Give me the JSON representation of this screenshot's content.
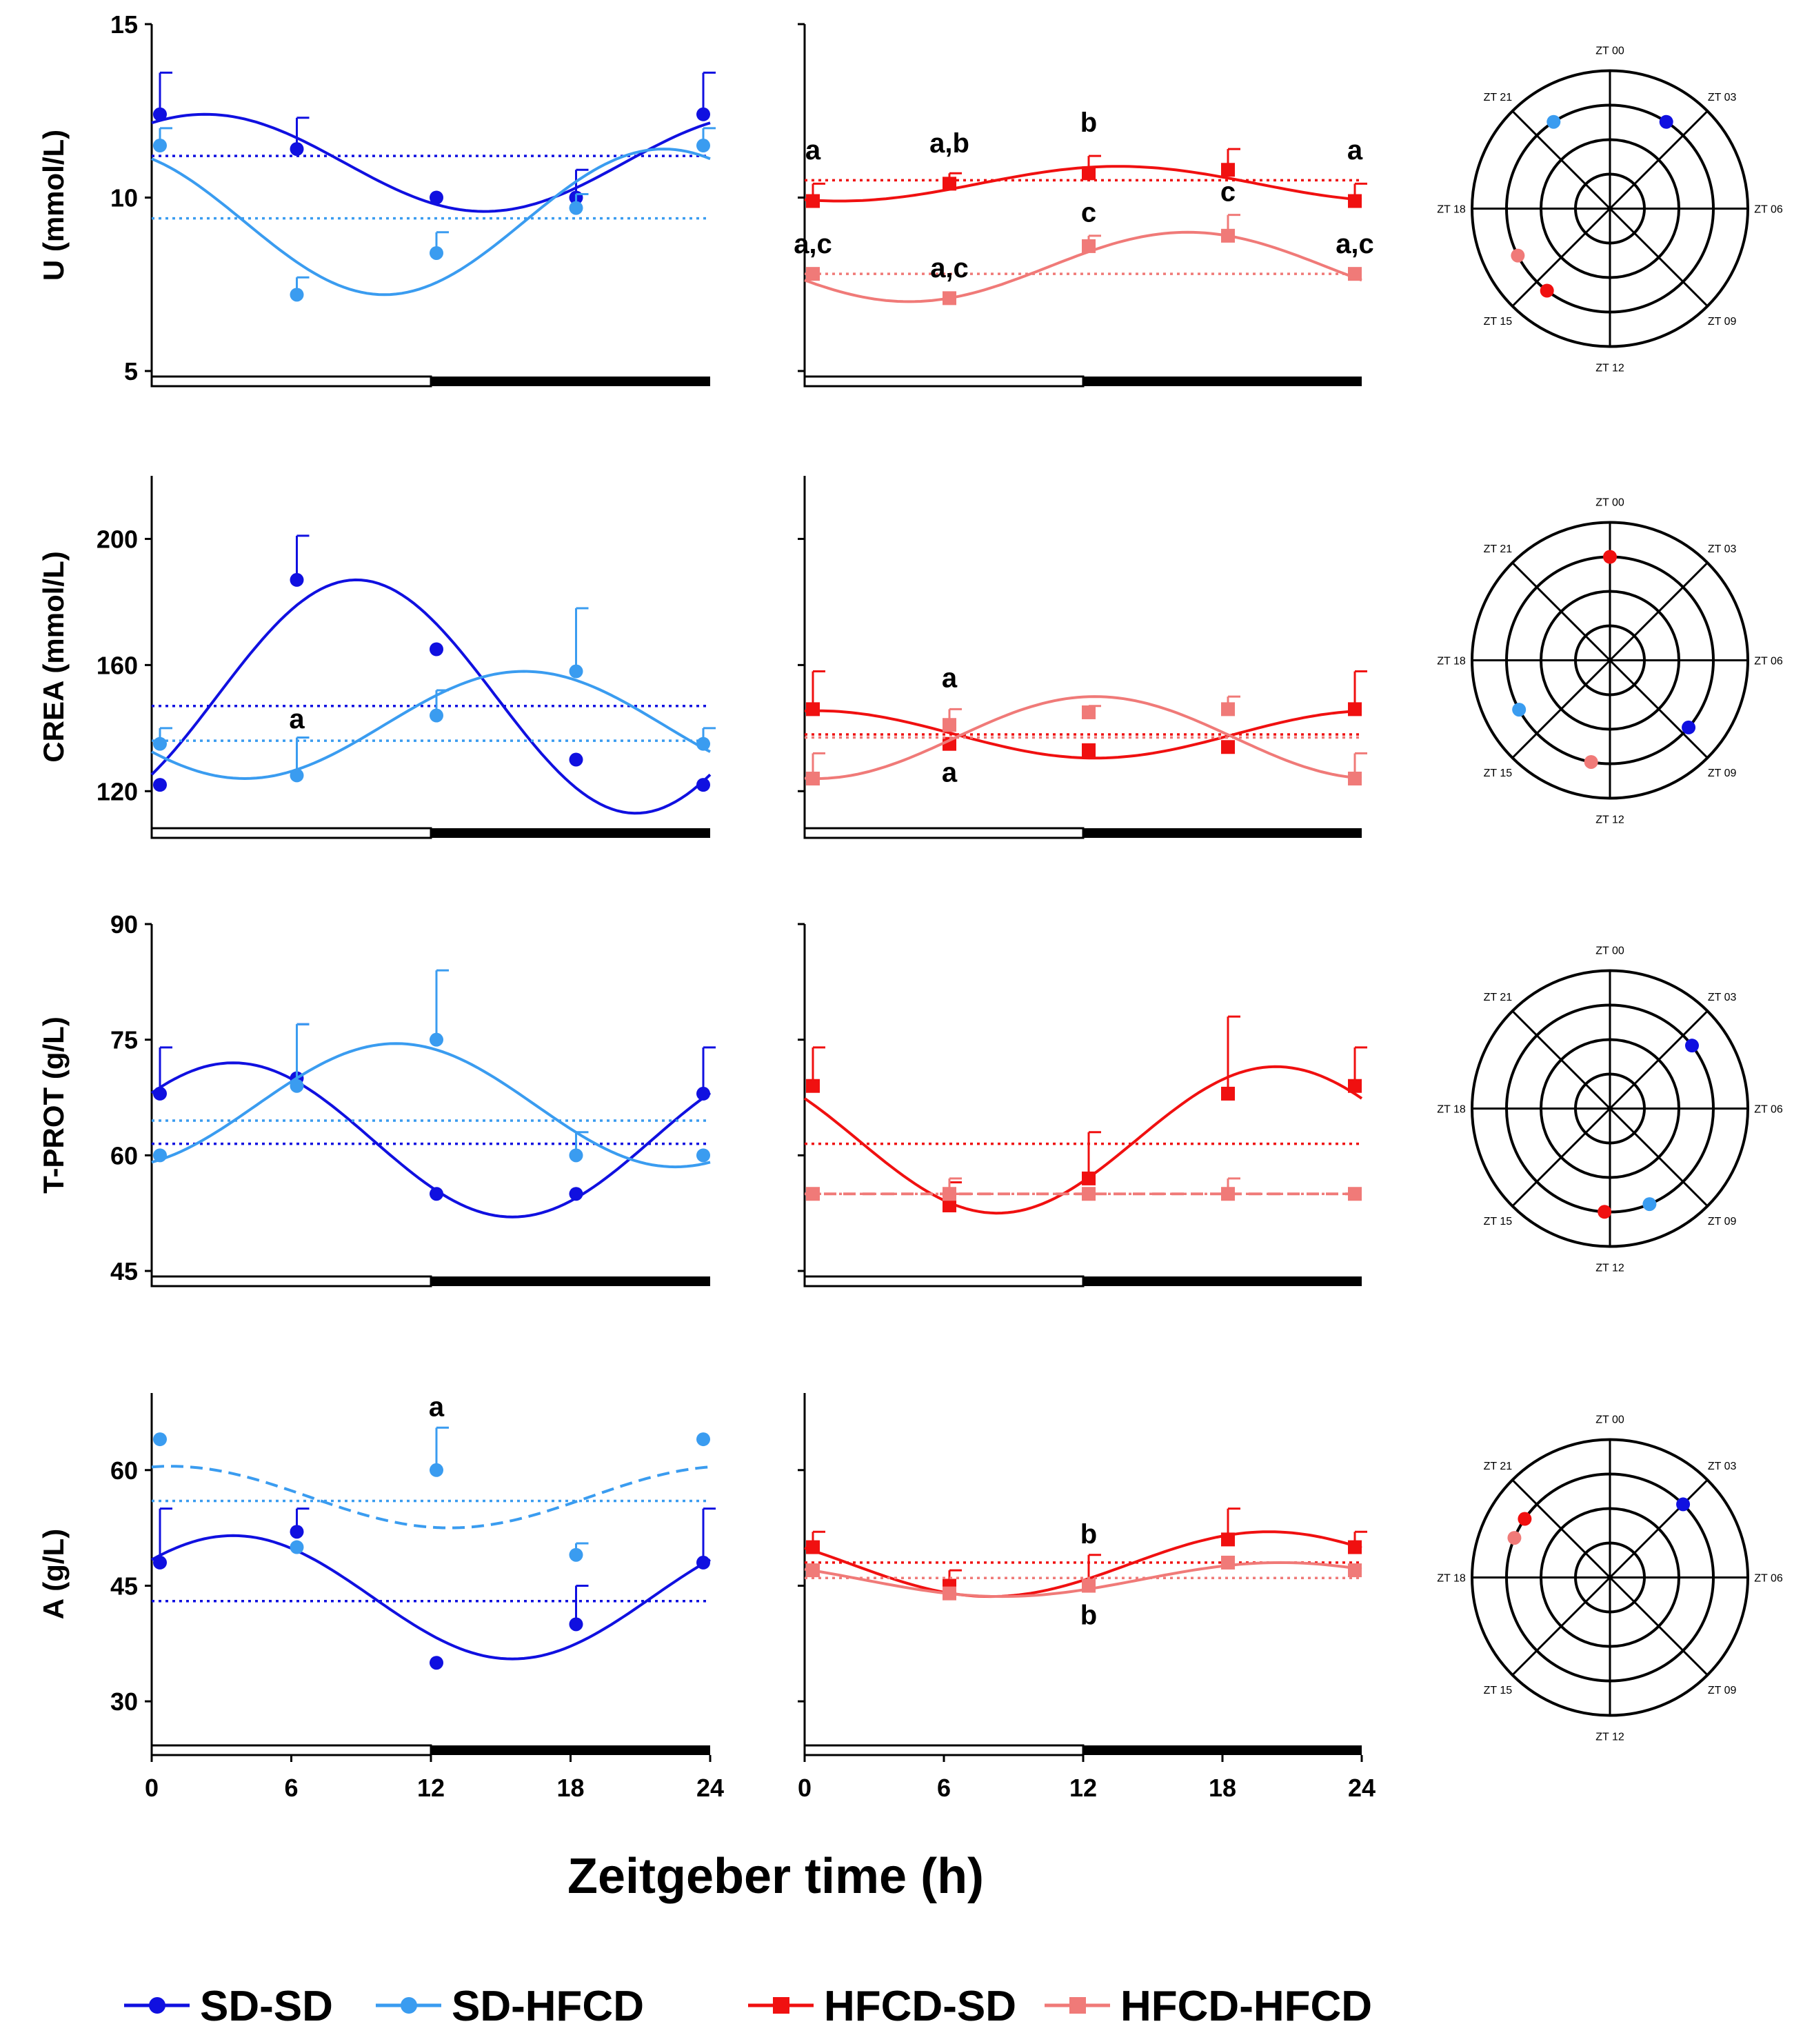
{
  "colors": {
    "sd_sd": "#1010e0",
    "sd_hfcd": "#3a9cf0",
    "hfcd_sd": "#f01010",
    "hfcd_hfcd": "#f07a78",
    "axis": "#000000"
  },
  "x_axis_title": "Zeitgeber time (h)",
  "legend": [
    {
      "key": "sd_sd",
      "label": "SD-SD",
      "marker": "circle"
    },
    {
      "key": "sd_hfcd",
      "label": "SD-HFCD",
      "marker": "circle"
    },
    {
      "key": "hfcd_sd",
      "label": "HFCD-SD",
      "marker": "square"
    },
    {
      "key": "hfcd_hfcd",
      "label": "HFCD-HFCD",
      "marker": "square"
    }
  ],
  "polar_labels": [
    "ZT 00",
    "ZT 03",
    "ZT 06",
    "ZT 09",
    "ZT 12",
    "ZT 15",
    "ZT 18",
    "ZT 21"
  ],
  "chart_data": [
    {
      "id": "U",
      "type": "line",
      "ylabel": "U (mmol/L)",
      "ylim": [
        5,
        15
      ],
      "yticks": [
        "15",
        "10",
        "5"
      ],
      "xlim": [
        0,
        24
      ],
      "xticks": [
        "0",
        "6",
        "12",
        "18",
        "24"
      ],
      "left": {
        "series": [
          {
            "name": "SD-SD",
            "key": "sd_sd",
            "x": [
              0,
              6,
              12,
              18,
              24
            ],
            "y": [
              12.4,
              11.4,
              10.0,
              10.0,
              12.4
            ],
            "err": [
              1.2,
              0.9,
              0,
              0.8,
              1.2
            ],
            "mesor": 11.2,
            "fit": {
              "mesor": 11.0,
              "amp": 1.4,
              "acro": 2.3
            }
          },
          {
            "name": "SD-HFCD",
            "key": "sd_hfcd",
            "x": [
              0,
              6,
              12,
              18,
              24
            ],
            "y": [
              11.5,
              7.2,
              8.4,
              9.7,
              11.5
            ],
            "err": [
              0.5,
              0.5,
              0.6,
              0.4,
              0.5
            ],
            "mesor": 9.4,
            "fit": {
              "mesor": 9.3,
              "amp": 2.1,
              "acro": 22.0
            }
          }
        ],
        "letters": []
      },
      "right": {
        "series": [
          {
            "name": "HFCD-SD",
            "key": "hfcd_sd",
            "x": [
              0,
              6,
              12,
              18,
              24
            ],
            "y": [
              9.9,
              10.4,
              10.7,
              10.8,
              9.9
            ],
            "err": [
              0.5,
              0.3,
              0.5,
              0.6,
              0.5
            ],
            "mesor": 10.5,
            "fit": {
              "mesor": 10.4,
              "amp": 0.5,
              "acro": 13.5
            }
          },
          {
            "name": "HFCD-HFCD",
            "key": "hfcd_hfcd",
            "x": [
              0,
              6,
              12,
              18,
              24
            ],
            "y": [
              7.8,
              7.1,
              8.6,
              8.9,
              7.8
            ],
            "err": [
              0,
              0,
              0.3,
              0.6,
              0
            ],
            "mesor": 7.8,
            "fit": {
              "mesor": 8.0,
              "amp": 1.0,
              "acro": 16.5
            }
          }
        ],
        "letters": [
          {
            "x": 0,
            "y": 11.1,
            "text": "a"
          },
          {
            "x": 6,
            "y": 11.3,
            "text": "a,b"
          },
          {
            "x": 12,
            "y": 11.9,
            "text": "b"
          },
          {
            "x": 24,
            "y": 11.1,
            "text": "a"
          },
          {
            "x": 0,
            "y": 8.4,
            "text": "a,c"
          },
          {
            "x": 6,
            "y": 7.7,
            "text": "a,c"
          },
          {
            "x": 12,
            "y": 9.3,
            "text": "c"
          },
          {
            "x": 18,
            "y": 9.9,
            "text": "c"
          },
          {
            "x": 24,
            "y": 8.4,
            "text": "a,c"
          }
        ]
      },
      "polar": [
        {
          "key": "sd_sd",
          "zt": 2.2,
          "r": 0.75
        },
        {
          "key": "sd_hfcd",
          "zt": 21.8,
          "r": 0.75
        },
        {
          "key": "hfcd_sd",
          "zt": 14.5,
          "r": 0.75
        },
        {
          "key": "hfcd_hfcd",
          "zt": 16.2,
          "r": 0.75
        }
      ]
    },
    {
      "id": "CREA",
      "type": "line",
      "ylabel": "CREA (mmol/L)",
      "ylim": [
        110,
        220
      ],
      "yticks": [
        "200",
        "160",
        "120"
      ],
      "xlim": [
        0,
        24
      ],
      "xticks": [
        "0",
        "6",
        "12",
        "18",
        "24"
      ],
      "left": {
        "series": [
          {
            "name": "SD-SD",
            "key": "sd_sd",
            "x": [
              0,
              6,
              12,
              18,
              24
            ],
            "y": [
              122,
              187,
              165,
              130,
              122
            ],
            "err": [
              0,
              14,
              0,
              0,
              0
            ],
            "mesor": 147,
            "fit": {
              "mesor": 150,
              "amp": 37,
              "acro": 8.8
            }
          },
          {
            "name": "SD-HFCD",
            "key": "sd_hfcd",
            "x": [
              0,
              6,
              12,
              18,
              24
            ],
            "y": [
              135,
              125,
              144,
              158,
              135
            ],
            "err": [
              5,
              12,
              8,
              20,
              5
            ],
            "mesor": 136,
            "fit": {
              "mesor": 141,
              "amp": 17,
              "acro": 16.0
            }
          }
        ],
        "letters": [
          {
            "x": 6,
            "y": 140,
            "text": "a"
          }
        ]
      },
      "right": {
        "series": [
          {
            "name": "HFCD-SD",
            "key": "hfcd_sd",
            "x": [
              0,
              6,
              12,
              18,
              24
            ],
            "y": [
              146,
              135,
              133,
              134,
              146
            ],
            "err": [
              12,
              0,
              0,
              0,
              12
            ],
            "mesor": 138,
            "fit": {
              "mesor": 138,
              "amp": 7.5,
              "acro": 0.5
            }
          },
          {
            "name": "HFCD-HFCD",
            "key": "hfcd_hfcd",
            "x": [
              0,
              6,
              12,
              18,
              24
            ],
            "y": [
              124,
              141,
              145,
              146,
              124
            ],
            "err": [
              8,
              5,
              2,
              4,
              8
            ],
            "mesor": 137,
            "fit": {
              "mesor": 137,
              "amp": 13,
              "acro": 12.5
            }
          }
        ],
        "letters": [
          {
            "x": 6,
            "y": 153,
            "text": "a"
          },
          {
            "x": 6,
            "y": 123,
            "text": "a"
          }
        ]
      },
      "polar": [
        {
          "key": "sd_sd",
          "zt": 8.7,
          "r": 0.75
        },
        {
          "key": "sd_hfcd",
          "zt": 16.1,
          "r": 0.75
        },
        {
          "key": "hfcd_sd",
          "zt": 0.0,
          "r": 0.75
        },
        {
          "key": "hfcd_hfcd",
          "zt": 12.7,
          "r": 0.75
        }
      ]
    },
    {
      "id": "T-PROT",
      "type": "line",
      "ylabel": "T-PROT (g/L)",
      "ylim": [
        45,
        90
      ],
      "yticks": [
        "90",
        "75",
        "60",
        "45"
      ],
      "xlim": [
        0,
        24
      ],
      "xticks": [
        "0",
        "6",
        "12",
        "18",
        "24"
      ],
      "left": {
        "series": [
          {
            "name": "SD-SD",
            "key": "sd_sd",
            "x": [
              0,
              6,
              12,
              18,
              24
            ],
            "y": [
              68,
              70,
              55,
              55,
              68
            ],
            "err": [
              6,
              7,
              0,
              0,
              6
            ],
            "mesor": 61.5,
            "fit": {
              "mesor": 62,
              "amp": 10,
              "acro": 3.5
            }
          },
          {
            "name": "SD-HFCD",
            "key": "sd_hfcd",
            "x": [
              0,
              6,
              12,
              18,
              24
            ],
            "y": [
              60,
              69,
              75,
              60,
              60
            ],
            "err": [
              0,
              8,
              9,
              3,
              0
            ],
            "mesor": 64.5,
            "fit": {
              "mesor": 66.5,
              "amp": 8,
              "acro": 10.5
            }
          }
        ],
        "letters": []
      },
      "right": {
        "series": [
          {
            "name": "HFCD-SD",
            "key": "hfcd_sd",
            "x": [
              0,
              6,
              12,
              18,
              24
            ],
            "y": [
              69,
              53.5,
              57,
              68,
              69
            ],
            "err": [
              5,
              3,
              6,
              10,
              5
            ],
            "mesor": 61.5,
            "fit": {
              "mesor": 62,
              "amp": 9.5,
              "acro": 20.3
            }
          },
          {
            "name": "HFCD-HFCD",
            "key": "hfcd_hfcd",
            "x": [
              0,
              6,
              12,
              18,
              24
            ],
            "y": [
              55,
              55,
              55,
              55,
              55
            ],
            "err": [
              0,
              2,
              0,
              2,
              0
            ],
            "mesor": 55,
            "fit": null,
            "dashed_fit": 55
          }
        ],
        "letters": []
      },
      "polar": [
        {
          "key": "sd_sd",
          "zt": 3.5,
          "r": 0.75
        },
        {
          "key": "sd_hfcd",
          "zt": 10.5,
          "r": 0.75
        },
        {
          "key": "hfcd_sd",
          "zt": 12.2,
          "r": 0.75
        }
      ]
    },
    {
      "id": "A",
      "type": "line",
      "ylabel": "A (g/L)",
      "ylim": [
        25,
        70
      ],
      "yticks": [
        "60",
        "45",
        "30"
      ],
      "xlim": [
        0,
        24
      ],
      "xticks": [
        "0",
        "6",
        "12",
        "18",
        "24"
      ],
      "left": {
        "series": [
          {
            "name": "SD-SD",
            "key": "sd_sd",
            "x": [
              0,
              6,
              12,
              18,
              24
            ],
            "y": [
              48,
              52,
              35,
              40,
              48
            ],
            "err": [
              7,
              3,
              0,
              5,
              7
            ],
            "mesor": 43,
            "fit": {
              "mesor": 43.5,
              "amp": 8,
              "acro": 3.5
            }
          },
          {
            "name": "SD-HFCD",
            "key": "sd_hfcd",
            "x": [
              0,
              6,
              12,
              18,
              24
            ],
            "y": [
              64,
              50,
              60,
              49,
              64
            ],
            "err": [
              0,
              0,
              5.5,
              1.5,
              0
            ],
            "mesor": 56,
            "fit": null,
            "dashed": {
              "mesor": 56.5,
              "amp": 4,
              "acro": 0.8
            }
          }
        ],
        "letters": [
          {
            "x": 12,
            "y": 67,
            "text": "a"
          }
        ]
      },
      "right": {
        "series": [
          {
            "name": "HFCD-SD",
            "key": "hfcd_sd",
            "x": [
              0,
              6,
              12,
              18,
              24
            ],
            "y": [
              50,
              45,
              45,
              51,
              50
            ],
            "err": [
              2,
              2,
              4,
              4,
              2
            ],
            "mesor": 48,
            "fit": {
              "mesor": 47.8,
              "amp": 4.2,
              "acro": 20
            }
          },
          {
            "name": "HFCD-HFCD",
            "key": "hfcd_hfcd",
            "x": [
              0,
              6,
              12,
              18,
              24
            ],
            "y": [
              47,
              44,
              45,
              48,
              47
            ],
            "err": [
              0,
              0,
              0,
              0,
              0
            ],
            "mesor": 46,
            "fit": {
              "mesor": 45.8,
              "amp": 2.2,
              "acro": 20.5
            }
          }
        ],
        "letters": [
          {
            "x": 12,
            "y": 50.5,
            "text": "b"
          },
          {
            "x": 12,
            "y": 40,
            "text": "b"
          }
        ]
      },
      "polar": [
        {
          "key": "sd_sd",
          "zt": 3.0,
          "r": 0.75
        },
        {
          "key": "hfcd_sd",
          "zt": 20.3,
          "r": 0.75
        },
        {
          "key": "hfcd_hfcd",
          "zt": 19.5,
          "r": 0.75
        }
      ]
    }
  ]
}
